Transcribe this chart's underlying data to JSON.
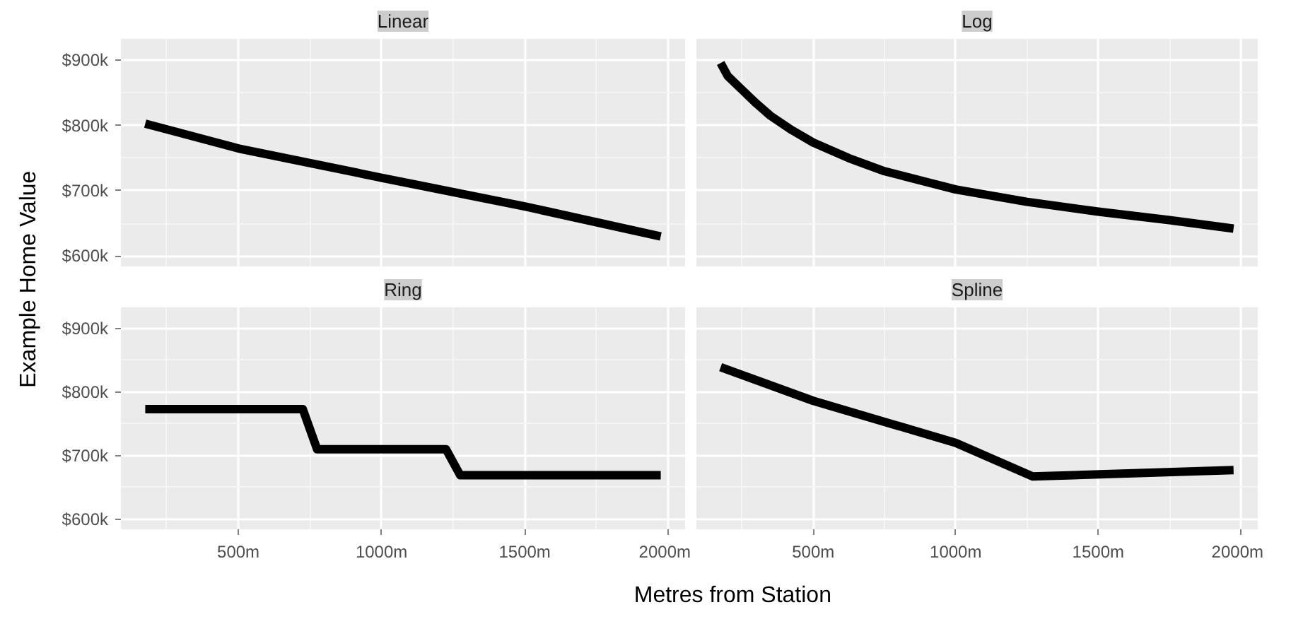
{
  "chart_data": [
    {
      "type": "line",
      "title": "Linear",
      "ylabel": "Example Home Value",
      "xlim": [
        90,
        2060
      ],
      "ylim": [
        584,
        933
      ],
      "xticks": [
        500,
        1000,
        1500,
        2000
      ],
      "yticks": [
        {
          "value": 600,
          "label": "$600k"
        },
        {
          "value": 700,
          "label": "$700k"
        },
        {
          "value": 800,
          "label": "$800k"
        },
        {
          "value": 900,
          "label": "$900k"
        }
      ],
      "grid": true,
      "tick_labels": "y",
      "line_style": "solid",
      "series": [
        {
          "color": "#000000",
          "x": [
            175,
            500,
            1000,
            1500,
            1975
          ],
          "values": [
            803,
            765,
            720,
            676,
            630
          ]
        }
      ]
    },
    {
      "type": "line",
      "title": "Log",
      "xlim": [
        90,
        2060
      ],
      "ylim": [
        584,
        933
      ],
      "xticks": [
        500,
        1000,
        1500,
        2000
      ],
      "yticks": [
        600,
        700,
        800,
        900
      ],
      "grid": true,
      "tick_labels": false,
      "line_style": "solid",
      "series": [
        {
          "color": "#000000",
          "x": [
            175,
            200,
            250,
            300,
            350,
            425,
            500,
            625,
            750,
            1000,
            1250,
            1500,
            1750,
            1975
          ],
          "values": [
            896,
            876,
            855,
            834,
            815,
            793,
            774,
            750,
            730,
            702,
            683,
            668,
            655,
            642
          ]
        }
      ]
    },
    {
      "type": "line",
      "title": "Ring",
      "xlim": [
        90,
        2060
      ],
      "ylim": [
        584,
        933
      ],
      "xticks": [
        {
          "value": 500,
          "label": "500m"
        },
        {
          "value": 1000,
          "label": "1000m"
        },
        {
          "value": 1500,
          "label": "1500m"
        },
        {
          "value": 2000,
          "label": "2000m"
        }
      ],
      "yticks": [
        {
          "value": 600,
          "label": "$600k"
        },
        {
          "value": 700,
          "label": "$700k"
        },
        {
          "value": 800,
          "label": "$800k"
        },
        {
          "value": 900,
          "label": "$900k"
        }
      ],
      "grid": true,
      "line_style": "solid",
      "series": [
        {
          "color": "#000000",
          "x": [
            175,
            725,
            775,
            1225,
            1275,
            1975
          ],
          "values": [
            773,
            773,
            710,
            710,
            669,
            669
          ]
        }
      ]
    },
    {
      "type": "line",
      "title": "Spline",
      "xlabel": "Metres from Station",
      "xlim": [
        90,
        2060
      ],
      "ylim": [
        584,
        933
      ],
      "xticks": [
        {
          "value": 500,
          "label": "500m"
        },
        {
          "value": 1000,
          "label": "1000m"
        },
        {
          "value": 1500,
          "label": "1500m"
        },
        {
          "value": 2000,
          "label": "2000m"
        }
      ],
      "yticks": [
        600,
        700,
        800,
        900
      ],
      "grid": true,
      "tick_labels": "x",
      "line_style": "solid",
      "series": [
        {
          "color": "#000000",
          "x": [
            175,
            500,
            1000,
            1270,
            1975
          ],
          "values": [
            839,
            786,
            720,
            667,
            677
          ]
        }
      ]
    }
  ]
}
